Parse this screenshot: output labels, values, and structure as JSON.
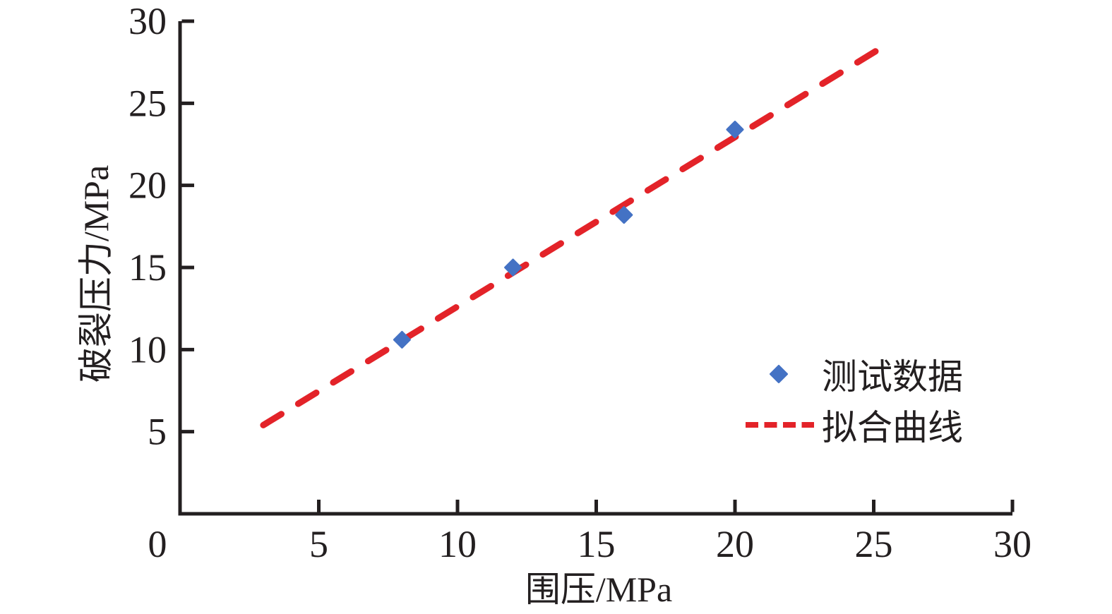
{
  "figure": {
    "background": "#ffffff"
  },
  "chart_data": {
    "type": "scatter",
    "title": "",
    "xlabel": "围压/MPa",
    "ylabel": "破裂压力/MPa",
    "xlim": [
      0,
      30
    ],
    "ylim": [
      0,
      30
    ],
    "x_ticks": [
      0,
      5,
      10,
      15,
      20,
      25,
      30
    ],
    "y_ticks": [
      5,
      10,
      15,
      20,
      25,
      30
    ],
    "grid": false,
    "legend_position": "right-center",
    "series": [
      {
        "name": "测试数据",
        "type": "scatter",
        "marker": "diamond",
        "color": "#4472c4",
        "points": [
          [
            8,
            10.6
          ],
          [
            12,
            15.0
          ],
          [
            16,
            18.2
          ],
          [
            20,
            23.4
          ]
        ]
      },
      {
        "name": "拟合曲线",
        "type": "line",
        "style": "dashed",
        "color": "#e32329",
        "points": [
          [
            3,
            5.4
          ],
          [
            25.1,
            28.2
          ]
        ]
      }
    ]
  },
  "colors": {
    "axis": "#231f20",
    "tick_text": "#231f20",
    "marker_blue": "#4472c4",
    "line_red": "#e32329"
  }
}
